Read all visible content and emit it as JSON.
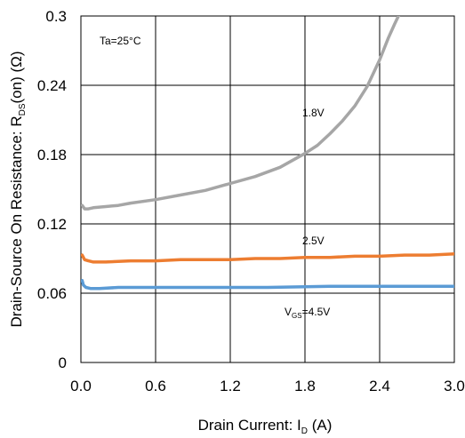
{
  "chart_data": {
    "type": "line",
    "xlabel": {
      "main": "Drain Current: I",
      "sub": "D",
      "unit": " (A)"
    },
    "ylabel": {
      "main": "Drain-Source On Resistance: R",
      "sub": "DS",
      "unit": "(on) (Ω)"
    },
    "xlim": [
      0,
      3.0
    ],
    "ylim": [
      0,
      0.3
    ],
    "x_ticks": [
      "0.0",
      "0.6",
      "1.2",
      "1.8",
      "2.4",
      "3.0"
    ],
    "y_ticks": [
      "0",
      "0.06",
      "0.12",
      "0.18",
      "0.24",
      "0.3"
    ],
    "grid": true,
    "colors": {
      "s18": "#a6a6a6",
      "s25": "#ed7d31",
      "s45": "#5b9bd5",
      "grid": "#000000"
    },
    "annotations": {
      "ta": "Ta=25°C",
      "s18": "1.8V",
      "s25": "2.5V",
      "s45_prefix": "V",
      "s45_sub": "GS",
      "s45_suffix": "=4.5V"
    },
    "series": [
      {
        "key": "s18",
        "x": [
          0.01,
          0.03,
          0.06,
          0.1,
          0.2,
          0.3,
          0.4,
          0.6,
          0.8,
          1.0,
          1.2,
          1.4,
          1.6,
          1.8,
          1.9,
          2.0,
          2.1,
          2.2,
          2.3,
          2.4,
          2.47,
          2.52,
          2.56
        ],
        "y": [
          0.136,
          0.133,
          0.133,
          0.134,
          0.135,
          0.136,
          0.138,
          0.141,
          0.145,
          0.149,
          0.155,
          0.161,
          0.169,
          0.181,
          0.188,
          0.198,
          0.209,
          0.222,
          0.239,
          0.262,
          0.281,
          0.293,
          0.302
        ]
      },
      {
        "key": "s25",
        "x": [
          0.01,
          0.03,
          0.06,
          0.1,
          0.2,
          0.4,
          0.6,
          0.8,
          1.0,
          1.2,
          1.4,
          1.6,
          1.8,
          2.0,
          2.2,
          2.4,
          2.6,
          2.8,
          3.0
        ],
        "y": [
          0.093,
          0.089,
          0.088,
          0.087,
          0.087,
          0.088,
          0.088,
          0.089,
          0.089,
          0.089,
          0.09,
          0.09,
          0.091,
          0.091,
          0.092,
          0.092,
          0.093,
          0.093,
          0.094
        ]
      },
      {
        "key": "s45",
        "x": [
          0.01,
          0.02,
          0.04,
          0.08,
          0.15,
          0.3,
          0.6,
          1.0,
          1.5,
          2.0,
          2.5,
          3.0
        ],
        "y": [
          0.071,
          0.067,
          0.065,
          0.064,
          0.064,
          0.065,
          0.065,
          0.065,
          0.065,
          0.066,
          0.066,
          0.066
        ]
      }
    ]
  }
}
